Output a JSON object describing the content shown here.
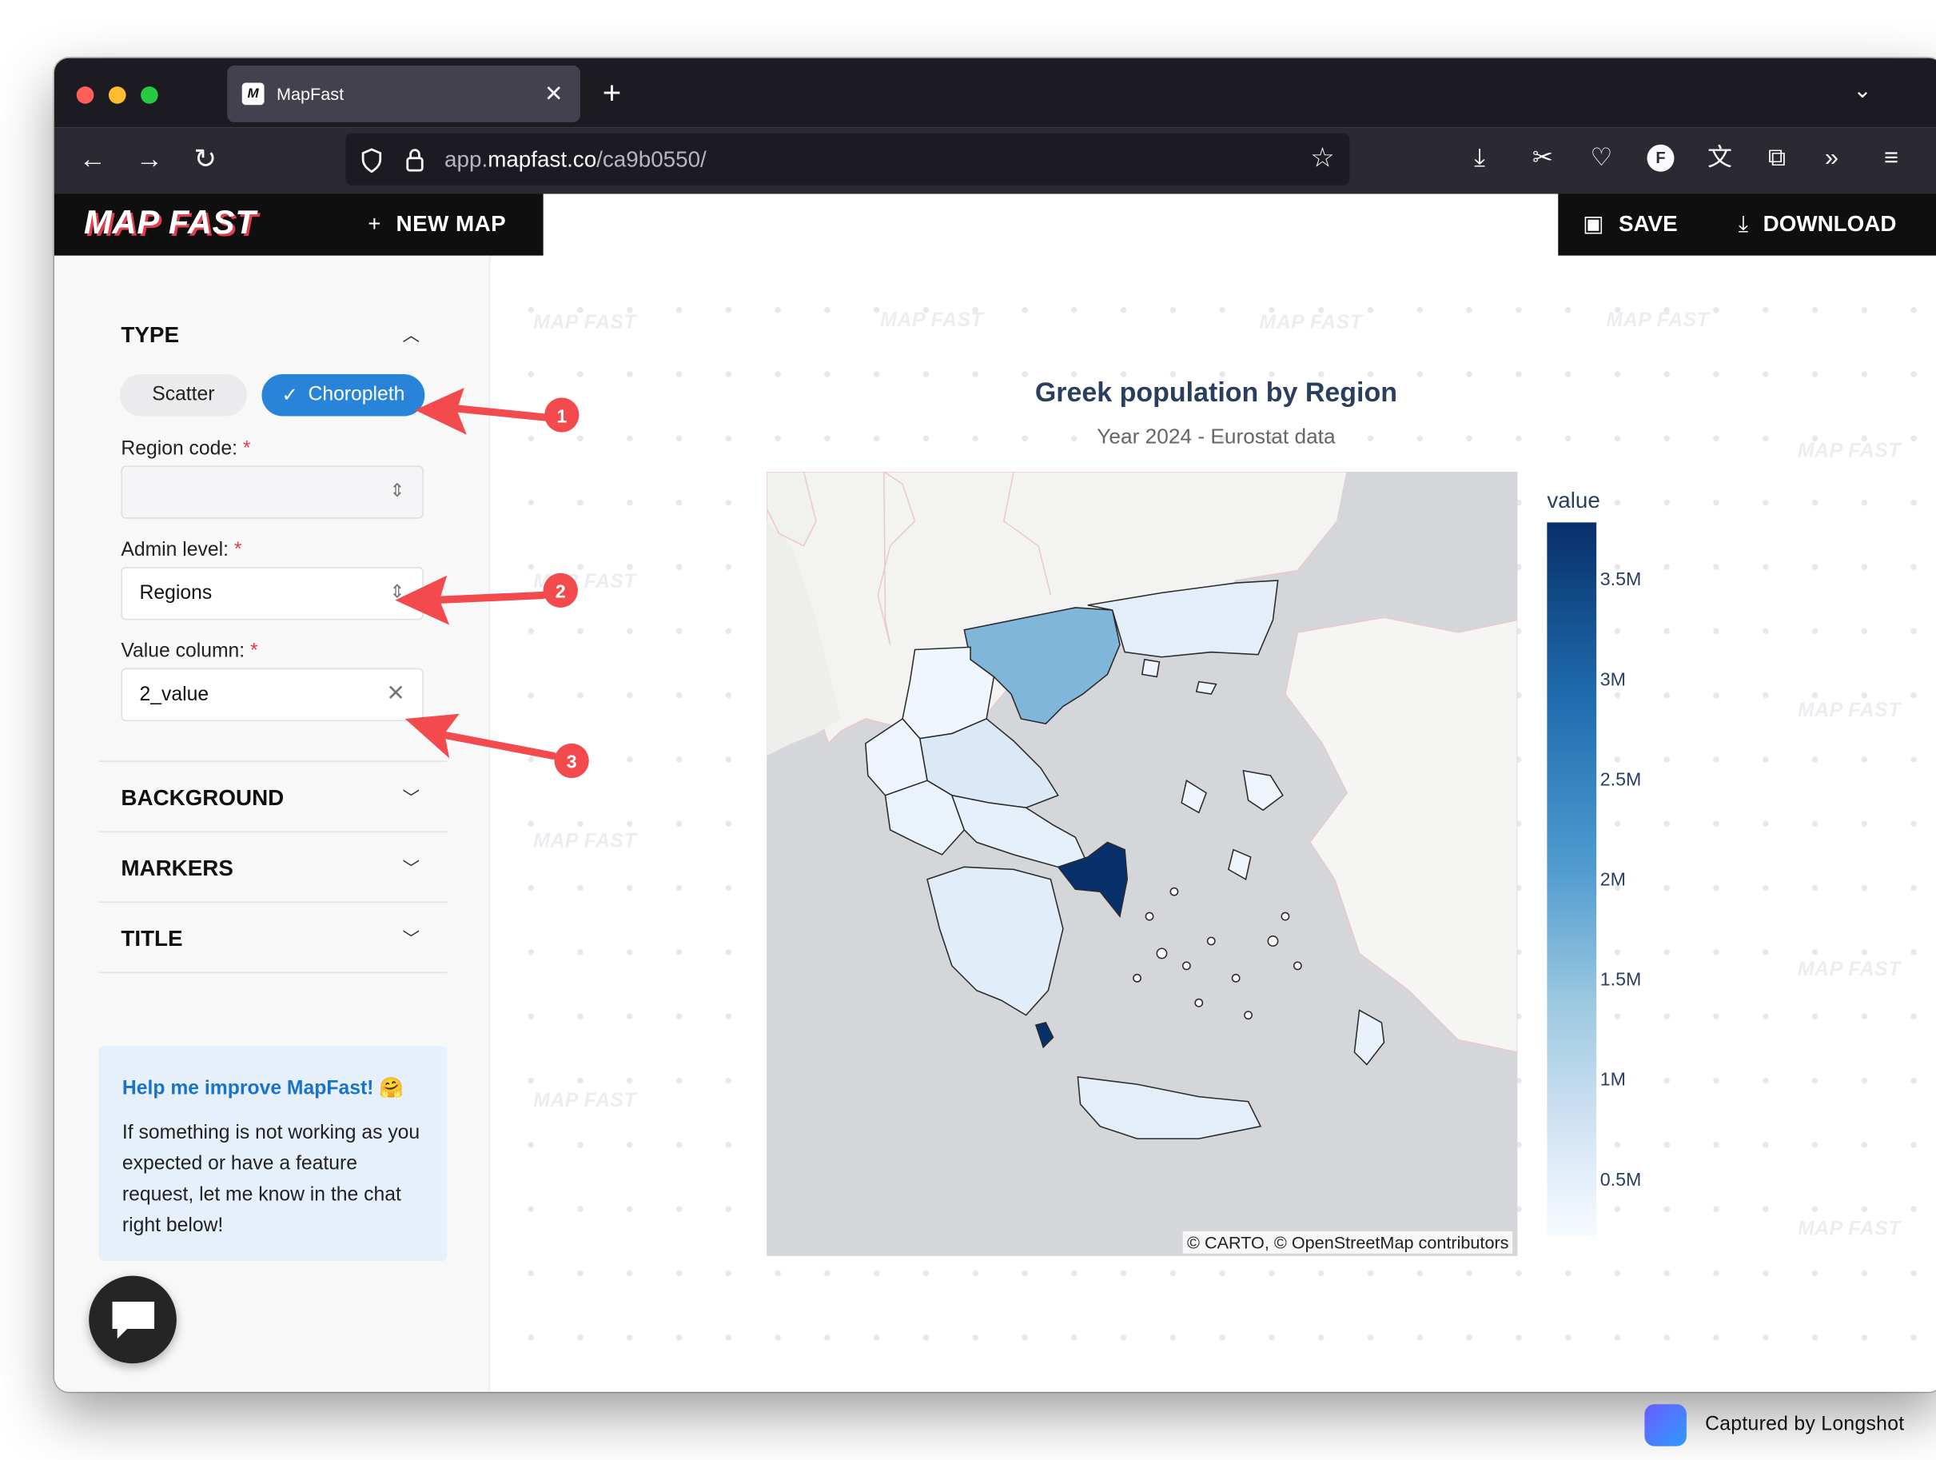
{
  "browser": {
    "tab_title": "MapFast",
    "url_domain": "app.",
    "url_main": "mapfast.co",
    "url_path": "/ca9b0550/"
  },
  "app": {
    "logo": "MAP FAST",
    "new_map": "NEW MAP",
    "save": "SAVE",
    "download": "DOWNLOAD",
    "watermark": "MAP FAST"
  },
  "sidebar": {
    "type_heading": "TYPE",
    "type_options": [
      "Scatter",
      "Choropleth"
    ],
    "selected_type": "Choropleth",
    "region_code_label": "Region code:",
    "region_code_value": "",
    "admin_level_label": "Admin level:",
    "admin_level_value": "Regions",
    "value_column_label": "Value column:",
    "value_column_value": "2_value",
    "sections": [
      "BACKGROUND",
      "MARKERS",
      "TITLE"
    ],
    "help_title": "Help me improve MapFast! 🤗",
    "help_body": "If something is not working as you expected or have a feature request, let me know in the chat right below!"
  },
  "chart": {
    "title": "Greek population by Region",
    "subtitle": "Year 2024 - Eurostat data",
    "attribution": "© CARTO, © OpenStreetMap contributors",
    "colorbar_title": "value",
    "colorbar_ticks": [
      "3.5M",
      "3M",
      "2.5M",
      "2M",
      "1.5M",
      "1M",
      "0.5M"
    ]
  },
  "chart_data": {
    "type": "choropleth",
    "title": "Greek population by Region",
    "subtitle": "Year 2024 - Eurostat data",
    "colorbar": {
      "title": "value",
      "range": [
        0,
        3800000
      ],
      "ticks": [
        500000,
        1000000,
        1500000,
        2000000,
        2500000,
        3000000,
        3500000
      ],
      "colorscale": "Blues"
    }
  },
  "annotations": [
    "1",
    "2",
    "3"
  ],
  "footer": {
    "capture_text": "Captured by Longshot"
  },
  "colors": {
    "accent": "#2784d9",
    "annotation": "#f24a4d",
    "brand_dark": "#0f0f0f"
  }
}
